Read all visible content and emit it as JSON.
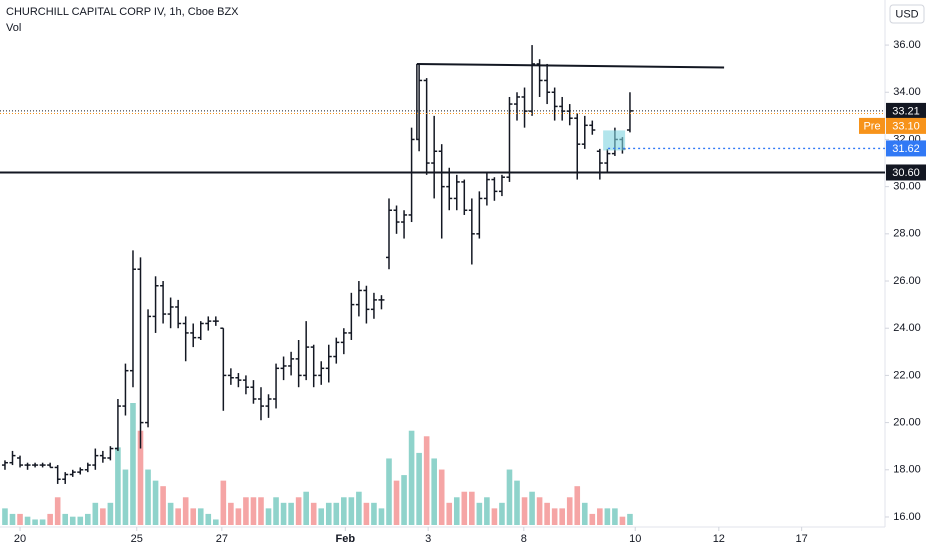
{
  "chart_data": {
    "type": "ohlc",
    "title": "CHURCHILL CAPITAL CORP IV, 1h, Cboe BZX",
    "volume_label": "Vol",
    "currency": "USD",
    "open": [
      18.2,
      18.3,
      18.5,
      18.2,
      18.2,
      18.2,
      18.2,
      18.1,
      17.6,
      17.8,
      17.9,
      18.0,
      18.2,
      18.6,
      18.5,
      18.9,
      20.7,
      22.2,
      26.5,
      20.0,
      24.5,
      25.8,
      24.6,
      24.9,
      24.2,
      23.8,
      23.6,
      24.2,
      24.3,
      24.0,
      22.0,
      21.9,
      21.8,
      21.5,
      21.0,
      20.7,
      21.0,
      22.3,
      22.4,
      22.7,
      22.0,
      23.2,
      22.0,
      22.3,
      22.8,
      23.4,
      23.8,
      25.0,
      25.6,
      24.8,
      25.2,
      27.0,
      29.0,
      28.5,
      28.8,
      32.0,
      34.5,
      31.0,
      31.5,
      30.0,
      29.5,
      30.2,
      29.0,
      28.0,
      29.5,
      30.3,
      29.8,
      30.4,
      33.5,
      33.8,
      33.2,
      35.2,
      34.5,
      34.0,
      33.4,
      33.2,
      32.9,
      31.8,
      32.6,
      31.5,
      31.0,
      31.4,
      32.0,
      32.4
    ],
    "high": [
      18.4,
      18.8,
      18.6,
      18.3,
      18.3,
      18.3,
      18.3,
      18.2,
      17.9,
      18.0,
      18.1,
      18.3,
      18.9,
      18.8,
      19.0,
      21.0,
      22.5,
      27.3,
      27.0,
      24.8,
      26.2,
      26.0,
      25.3,
      25.2,
      24.5,
      24.2,
      24.3,
      24.5,
      24.5,
      24.0,
      22.3,
      22.1,
      22.0,
      21.8,
      21.5,
      21.2,
      22.5,
      22.8,
      23.0,
      23.5,
      24.3,
      23.3,
      22.6,
      23.3,
      23.6,
      24.0,
      25.5,
      26.0,
      25.8,
      25.5,
      25.4,
      29.5,
      29.2,
      29.0,
      32.5,
      35.2,
      34.6,
      33.0,
      31.8,
      30.8,
      30.5,
      30.3,
      29.5,
      29.8,
      30.6,
      30.4,
      30.5,
      33.8,
      34.0,
      34.2,
      36.0,
      35.4,
      35.2,
      34.2,
      33.8,
      33.5,
      33.1,
      33.0,
      32.8,
      31.6,
      31.6,
      32.5,
      32.1,
      34.0
    ],
    "low": [
      18.0,
      18.2,
      18.1,
      18.0,
      18.1,
      18.1,
      18.1,
      17.4,
      17.4,
      17.7,
      17.8,
      17.9,
      18.0,
      18.3,
      18.4,
      18.8,
      20.3,
      21.5,
      18.9,
      19.8,
      23.8,
      24.2,
      24.0,
      24.0,
      22.6,
      23.2,
      23.5,
      23.9,
      24.1,
      20.5,
      21.6,
      21.5,
      21.2,
      20.8,
      20.1,
      20.2,
      20.6,
      21.8,
      22.0,
      21.5,
      21.8,
      21.5,
      21.6,
      21.7,
      22.5,
      22.9,
      23.5,
      24.5,
      24.2,
      24.4,
      24.8,
      26.5,
      28.0,
      27.8,
      28.5,
      31.5,
      30.5,
      29.5,
      27.8,
      29.0,
      29.0,
      28.8,
      26.7,
      27.8,
      29.2,
      29.4,
      29.6,
      30.2,
      32.8,
      32.5,
      33.0,
      33.8,
      33.5,
      32.8,
      32.8,
      32.6,
      30.3,
      31.6,
      32.2,
      30.3,
      30.6,
      31.3,
      31.4,
      32.3
    ],
    "close": [
      18.3,
      18.6,
      18.2,
      18.2,
      18.2,
      18.2,
      18.1,
      17.6,
      17.8,
      17.9,
      18.0,
      18.2,
      18.6,
      18.5,
      18.9,
      20.7,
      22.2,
      26.5,
      20.0,
      24.5,
      25.8,
      24.6,
      24.9,
      24.2,
      23.8,
      23.6,
      24.2,
      24.3,
      24.3,
      22.0,
      21.9,
      21.8,
      21.5,
      21.0,
      20.7,
      21.0,
      22.3,
      22.4,
      22.7,
      22.0,
      23.2,
      22.0,
      22.3,
      22.8,
      23.4,
      23.8,
      25.0,
      25.6,
      24.8,
      25.2,
      25.2,
      29.0,
      28.5,
      28.8,
      32.0,
      34.5,
      31.0,
      31.5,
      30.0,
      29.5,
      30.2,
      29.0,
      28.0,
      29.5,
      30.3,
      29.8,
      30.4,
      33.5,
      33.8,
      33.2,
      35.2,
      34.5,
      34.0,
      33.4,
      33.2,
      32.9,
      31.8,
      32.6,
      32.4,
      31.0,
      31.4,
      32.0,
      31.6,
      33.21
    ],
    "volume": [
      3,
      2,
      2,
      1.5,
      1,
      1,
      2,
      5,
      2,
      1.5,
      1.5,
      2,
      4,
      3,
      4,
      14,
      10,
      22,
      17,
      10,
      8,
      7,
      4,
      3,
      5,
      3,
      3,
      2,
      1,
      8,
      4,
      3,
      5,
      5,
      5,
      3,
      5,
      4,
      4,
      5,
      6,
      4,
      3,
      4,
      4,
      5,
      5,
      6,
      4,
      4,
      3,
      12,
      8,
      9,
      17,
      13,
      16,
      12,
      10,
      4,
      5,
      6,
      6,
      4,
      5,
      3,
      4,
      10,
      8,
      5,
      6,
      5,
      4,
      3,
      3,
      5,
      7,
      4,
      2,
      3,
      3,
      3,
      1.5,
      2
    ],
    "vlim": [
      0,
      22
    ],
    "bar_color": "#131722",
    "up_color": "#8fd3cb",
    "down_color": "#f5a5a5",
    "xlim": [
      -0.66,
      116.87
    ],
    "ylim": [
      15.66,
      37.91
    ],
    "yticks": [
      {
        "value": 16,
        "label": "16.00"
      },
      {
        "value": 18,
        "label": "18.00"
      },
      {
        "value": 20,
        "label": "20.00"
      },
      {
        "value": 22,
        "label": "22.00"
      },
      {
        "value": 24,
        "label": "24.00"
      },
      {
        "value": 26,
        "label": "26.00"
      },
      {
        "value": 28,
        "label": "28.00"
      },
      {
        "value": 30,
        "label": "30.00"
      },
      {
        "value": 32,
        "label": "32.00"
      },
      {
        "value": 34,
        "label": "34.00"
      },
      {
        "value": 36,
        "label": "36.00"
      }
    ],
    "xticks": [
      {
        "value": 2,
        "label": "20"
      },
      {
        "value": 17.5,
        "label": "25"
      },
      {
        "value": 28.8,
        "label": "27"
      },
      {
        "value": 45.2,
        "label": "Feb"
      },
      {
        "value": 56.2,
        "label": "3"
      },
      {
        "value": 68.9,
        "label": "8"
      },
      {
        "value": 83.7,
        "label": "10"
      },
      {
        "value": 94.8,
        "label": "12"
      },
      {
        "value": 105.8,
        "label": "17"
      }
    ],
    "support_line": {
      "value": 30.6,
      "label": "30.60"
    },
    "pre_market": {
      "tag": "Pre",
      "value": 33.1,
      "label": "33.10",
      "color": "#f7931a"
    },
    "level_line": {
      "value": 31.62,
      "color": "#3179f5",
      "from": 80.1
    },
    "trend_line": {
      "x": [
        54.7,
        95.5
      ],
      "y": [
        35.2,
        35.05
      ]
    }
  }
}
